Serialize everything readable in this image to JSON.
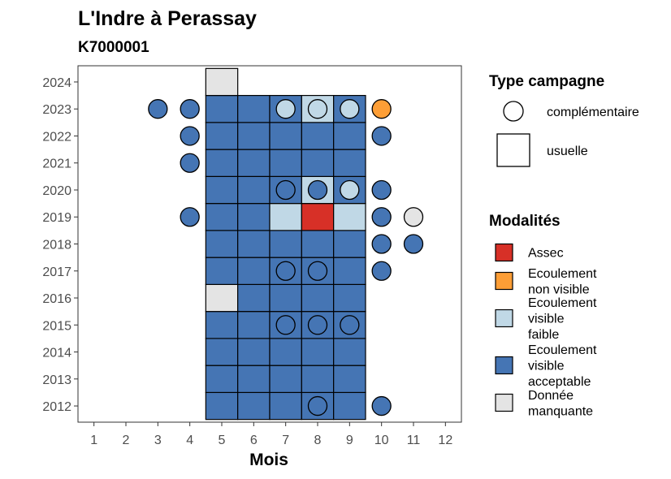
{
  "chart_data": {
    "type": "heatmap",
    "title": "L'Indre à Perassay",
    "subtitle": "K7000001",
    "xlabel": "Mois",
    "ylabel": "",
    "x_ticks": [
      1,
      2,
      3,
      4,
      5,
      6,
      7,
      8,
      9,
      10,
      11,
      12
    ],
    "y_ticks": [
      2012,
      2013,
      2014,
      2015,
      2016,
      2017,
      2018,
      2019,
      2020,
      2021,
      2022,
      2023,
      2024
    ],
    "xlim": [
      0.5,
      12.5
    ],
    "ylim": [
      2011.4,
      2024.6
    ],
    "grid": false,
    "legend_type": {
      "title": "Type campagne",
      "entries": [
        {
          "label": "complémentaire",
          "shape": "circle"
        },
        {
          "label": "usuelle",
          "shape": "square"
        }
      ]
    },
    "legend_modalites": {
      "title": "Modalités",
      "entries": [
        {
          "key": "assec",
          "label_lines": [
            "Assec"
          ],
          "color": "#d73027"
        },
        {
          "key": "nonvis",
          "label_lines": [
            "Ecoulement",
            "non visible"
          ],
          "color": "#fd9e36"
        },
        {
          "key": "faible",
          "label_lines": [
            "Ecoulement",
            "visible",
            "faible"
          ],
          "color": "#c0d8e6"
        },
        {
          "key": "accept",
          "label_lines": [
            "Ecoulement",
            "visible",
            "acceptable"
          ],
          "color": "#4575b4"
        },
        {
          "key": "manq",
          "label_lines": [
            "Donnée",
            "manquante"
          ],
          "color": "#e4e4e4"
        }
      ]
    },
    "usuelle": [
      {
        "year": 2012,
        "month": 5,
        "m": "accept"
      },
      {
        "year": 2012,
        "month": 6,
        "m": "accept"
      },
      {
        "year": 2012,
        "month": 7,
        "m": "accept"
      },
      {
        "year": 2012,
        "month": 8,
        "m": "accept"
      },
      {
        "year": 2012,
        "month": 9,
        "m": "accept"
      },
      {
        "year": 2013,
        "month": 5,
        "m": "accept"
      },
      {
        "year": 2013,
        "month": 6,
        "m": "accept"
      },
      {
        "year": 2013,
        "month": 7,
        "m": "accept"
      },
      {
        "year": 2013,
        "month": 8,
        "m": "accept"
      },
      {
        "year": 2013,
        "month": 9,
        "m": "accept"
      },
      {
        "year": 2014,
        "month": 5,
        "m": "accept"
      },
      {
        "year": 2014,
        "month": 6,
        "m": "accept"
      },
      {
        "year": 2014,
        "month": 7,
        "m": "accept"
      },
      {
        "year": 2014,
        "month": 8,
        "m": "accept"
      },
      {
        "year": 2014,
        "month": 9,
        "m": "accept"
      },
      {
        "year": 2015,
        "month": 5,
        "m": "accept"
      },
      {
        "year": 2015,
        "month": 6,
        "m": "accept"
      },
      {
        "year": 2015,
        "month": 7,
        "m": "accept"
      },
      {
        "year": 2015,
        "month": 8,
        "m": "accept"
      },
      {
        "year": 2015,
        "month": 9,
        "m": "accept"
      },
      {
        "year": 2016,
        "month": 5,
        "m": "manq"
      },
      {
        "year": 2016,
        "month": 6,
        "m": "accept"
      },
      {
        "year": 2016,
        "month": 7,
        "m": "accept"
      },
      {
        "year": 2016,
        "month": 8,
        "m": "accept"
      },
      {
        "year": 2016,
        "month": 9,
        "m": "accept"
      },
      {
        "year": 2017,
        "month": 5,
        "m": "accept"
      },
      {
        "year": 2017,
        "month": 6,
        "m": "accept"
      },
      {
        "year": 2017,
        "month": 7,
        "m": "accept"
      },
      {
        "year": 2017,
        "month": 8,
        "m": "accept"
      },
      {
        "year": 2017,
        "month": 9,
        "m": "accept"
      },
      {
        "year": 2018,
        "month": 5,
        "m": "accept"
      },
      {
        "year": 2018,
        "month": 6,
        "m": "accept"
      },
      {
        "year": 2018,
        "month": 7,
        "m": "accept"
      },
      {
        "year": 2018,
        "month": 8,
        "m": "accept"
      },
      {
        "year": 2018,
        "month": 9,
        "m": "accept"
      },
      {
        "year": 2019,
        "month": 5,
        "m": "accept"
      },
      {
        "year": 2019,
        "month": 6,
        "m": "accept"
      },
      {
        "year": 2019,
        "month": 7,
        "m": "faible"
      },
      {
        "year": 2019,
        "month": 8,
        "m": "assec"
      },
      {
        "year": 2019,
        "month": 9,
        "m": "faible"
      },
      {
        "year": 2020,
        "month": 5,
        "m": "accept"
      },
      {
        "year": 2020,
        "month": 6,
        "m": "accept"
      },
      {
        "year": 2020,
        "month": 7,
        "m": "accept"
      },
      {
        "year": 2020,
        "month": 8,
        "m": "faible"
      },
      {
        "year": 2020,
        "month": 9,
        "m": "accept"
      },
      {
        "year": 2021,
        "month": 5,
        "m": "accept"
      },
      {
        "year": 2021,
        "month": 6,
        "m": "accept"
      },
      {
        "year": 2021,
        "month": 7,
        "m": "accept"
      },
      {
        "year": 2021,
        "month": 8,
        "m": "accept"
      },
      {
        "year": 2021,
        "month": 9,
        "m": "accept"
      },
      {
        "year": 2022,
        "month": 5,
        "m": "accept"
      },
      {
        "year": 2022,
        "month": 6,
        "m": "accept"
      },
      {
        "year": 2022,
        "month": 7,
        "m": "accept"
      },
      {
        "year": 2022,
        "month": 8,
        "m": "accept"
      },
      {
        "year": 2022,
        "month": 9,
        "m": "accept"
      },
      {
        "year": 2023,
        "month": 5,
        "m": "accept"
      },
      {
        "year": 2023,
        "month": 6,
        "m": "accept"
      },
      {
        "year": 2023,
        "month": 7,
        "m": "accept"
      },
      {
        "year": 2023,
        "month": 8,
        "m": "faible"
      },
      {
        "year": 2023,
        "month": 9,
        "m": "accept"
      },
      {
        "year": 2024,
        "month": 5,
        "m": "manq"
      }
    ],
    "complementaire": [
      {
        "year": 2012,
        "month": 8,
        "m": "accept"
      },
      {
        "year": 2012,
        "month": 10,
        "m": "accept"
      },
      {
        "year": 2015,
        "month": 7,
        "m": "accept"
      },
      {
        "year": 2015,
        "month": 8,
        "m": "accept"
      },
      {
        "year": 2015,
        "month": 9,
        "m": "accept"
      },
      {
        "year": 2017,
        "month": 7,
        "m": "accept"
      },
      {
        "year": 2017,
        "month": 8,
        "m": "accept"
      },
      {
        "year": 2017,
        "month": 10,
        "m": "accept"
      },
      {
        "year": 2018,
        "month": 10,
        "m": "accept"
      },
      {
        "year": 2018,
        "month": 11,
        "m": "accept"
      },
      {
        "year": 2019,
        "month": 4,
        "m": "accept"
      },
      {
        "year": 2019,
        "month": 10,
        "m": "accept"
      },
      {
        "year": 2019,
        "month": 11,
        "m": "manq"
      },
      {
        "year": 2020,
        "month": 7,
        "m": "accept"
      },
      {
        "year": 2020,
        "month": 8,
        "m": "accept"
      },
      {
        "year": 2020,
        "month": 9,
        "m": "faible"
      },
      {
        "year": 2020,
        "month": 10,
        "m": "accept"
      },
      {
        "year": 2021,
        "month": 4,
        "m": "accept"
      },
      {
        "year": 2022,
        "month": 4,
        "m": "accept"
      },
      {
        "year": 2022,
        "month": 10,
        "m": "accept"
      },
      {
        "year": 2023,
        "month": 3,
        "m": "accept"
      },
      {
        "year": 2023,
        "month": 4,
        "m": "accept"
      },
      {
        "year": 2023,
        "month": 7,
        "m": "faible"
      },
      {
        "year": 2023,
        "month": 8,
        "m": "faible"
      },
      {
        "year": 2023,
        "month": 9,
        "m": "faible"
      },
      {
        "year": 2023,
        "month": 10,
        "m": "nonvis"
      }
    ]
  }
}
